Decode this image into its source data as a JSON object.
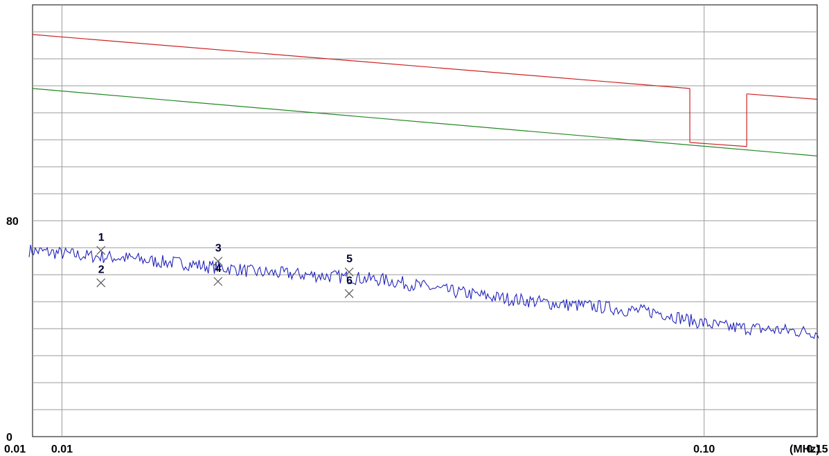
{
  "chart_data": {
    "type": "line",
    "title": "",
    "xlabel": "",
    "ylabel": "",
    "x_scale": "log",
    "x_unit_label": "(MHz)",
    "xlim": [
      0.009,
      0.15
    ],
    "ylim": [
      0,
      160
    ],
    "grid": true,
    "x_tick_labels": [
      {
        "x": 0.009,
        "label": "0.01"
      },
      {
        "x": 0.01,
        "label": "0.01"
      },
      {
        "x": 0.1,
        "label": "0.10"
      },
      {
        "x": 0.15,
        "label": "0.15"
      }
    ],
    "y_tick_labels": [
      {
        "y": 80,
        "label": "80"
      },
      {
        "y": 0,
        "label": "0"
      }
    ],
    "series": [
      {
        "color": "#cc2222",
        "segments": [
          {
            "x": [
              0.009,
              0.095
            ],
            "y": [
              149,
              129
            ]
          },
          {
            "x": [
              0.095,
              0.095
            ],
            "y": [
              129,
              109
            ]
          },
          {
            "x": [
              0.095,
              0.1165
            ],
            "y": [
              109,
              107.5
            ]
          },
          {
            "x": [
              0.1165,
              0.1165
            ],
            "y": [
              107.5,
              127
            ]
          },
          {
            "x": [
              0.1165,
              0.15
            ],
            "y": [
              127,
              125
            ]
          }
        ]
      },
      {
        "color": "#228822",
        "segments": [
          {
            "x": [
              0.009,
              0.15
            ],
            "y": [
              129,
              104
            ]
          }
        ]
      },
      {
        "color": "#2222bb",
        "x": [
          0.009,
          0.0095,
          0.01,
          0.011,
          0.012,
          0.013,
          0.014,
          0.015,
          0.016,
          0.017,
          0.018,
          0.019,
          0.02,
          0.022,
          0.024,
          0.026,
          0.028,
          0.03,
          0.032,
          0.034,
          0.036,
          0.038,
          0.04,
          0.043,
          0.046,
          0.05,
          0.055,
          0.06,
          0.065,
          0.07,
          0.075,
          0.08,
          0.085,
          0.09,
          0.095,
          0.1,
          0.105,
          0.11,
          0.12,
          0.13,
          0.14,
          0.15
        ],
        "y": [
          69,
          68.5,
          68,
          67,
          66.5,
          66,
          65,
          64.5,
          64,
          63,
          62.5,
          62,
          61,
          60.5,
          60,
          59.5,
          59,
          58.5,
          58,
          57,
          56,
          55,
          54,
          53,
          52,
          51,
          50,
          49,
          48.5,
          48,
          47,
          46.5,
          46,
          44.5,
          43,
          42,
          41,
          40.5,
          40,
          39.5,
          39,
          38.5
        ]
      }
    ],
    "markers": [
      {
        "label": "1",
        "x": 0.0115,
        "y": 69
      },
      {
        "label": "2",
        "x": 0.0115,
        "y": 57
      },
      {
        "label": "3",
        "x": 0.0175,
        "y": 65
      },
      {
        "label": "4",
        "x": 0.0175,
        "y": 57.5
      },
      {
        "label": "5",
        "x": 0.028,
        "y": 61
      },
      {
        "label": "6",
        "x": 0.028,
        "y": 53
      }
    ]
  }
}
